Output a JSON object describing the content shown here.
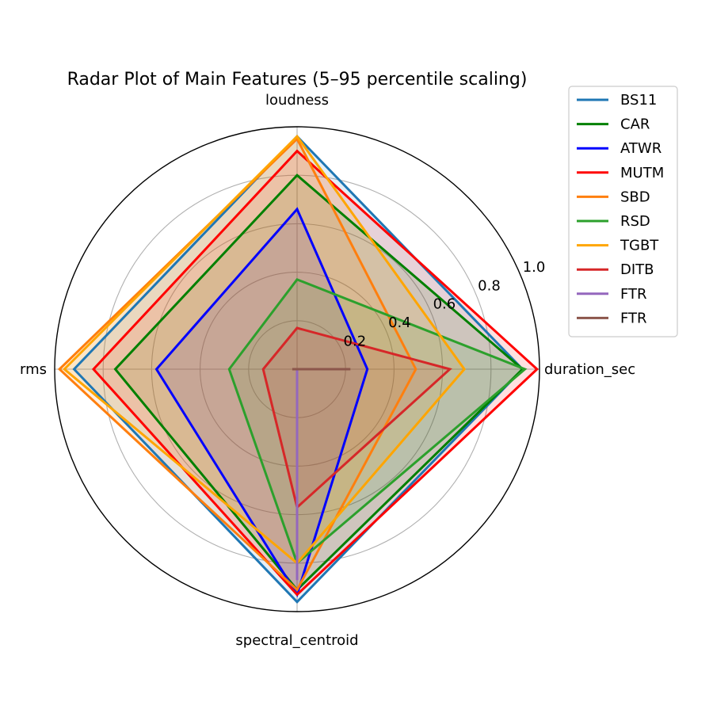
{
  "chart_data": {
    "type": "radar",
    "title": "Radar Plot of Main Features (5–95 percentile scaling)",
    "axes": [
      "duration_sec",
      "loudness",
      "rms",
      "spectral_centroid"
    ],
    "rlim": [
      0,
      1.0
    ],
    "rticks": [
      0.2,
      0.4,
      0.6,
      0.8,
      1.0
    ],
    "grid": true,
    "legend_position": "upper-right outside",
    "series": [
      {
        "name": "BS11",
        "color": "#1f77b4",
        "fill": true,
        "values": [
          0.93,
          0.96,
          0.92,
          0.96
        ]
      },
      {
        "name": "CAR",
        "color": "#008000",
        "fill": true,
        "values": [
          0.93,
          0.8,
          0.75,
          0.91
        ]
      },
      {
        "name": "ATWR",
        "color": "#0000ff",
        "fill": true,
        "values": [
          0.29,
          0.66,
          0.58,
          0.93
        ]
      },
      {
        "name": "MUTM",
        "color": "#ff0000",
        "fill": true,
        "values": [
          0.99,
          0.9,
          0.84,
          0.93
        ]
      },
      {
        "name": "SBD",
        "color": "#ff7f0e",
        "fill": true,
        "values": [
          0.49,
          0.95,
          0.98,
          0.91
        ]
      },
      {
        "name": "RSD",
        "color": "#2ca02c",
        "fill": true,
        "values": [
          0.94,
          0.37,
          0.28,
          0.8
        ]
      },
      {
        "name": "TGBT",
        "color": "#ffa500",
        "fill": true,
        "values": [
          0.69,
          0.96,
          0.96,
          0.8
        ]
      },
      {
        "name": "DITB",
        "color": "#d62728",
        "fill": true,
        "values": [
          0.63,
          0.17,
          0.14,
          0.57
        ]
      },
      {
        "name": "FTR",
        "color": "#9467bd",
        "fill": false,
        "values": [
          0.0,
          0.0,
          0.0,
          0.87
        ]
      },
      {
        "name": "FTR",
        "color": "#8c564b",
        "fill": false,
        "values": [
          0.22,
          0.0,
          0.02,
          0.0
        ]
      }
    ]
  }
}
